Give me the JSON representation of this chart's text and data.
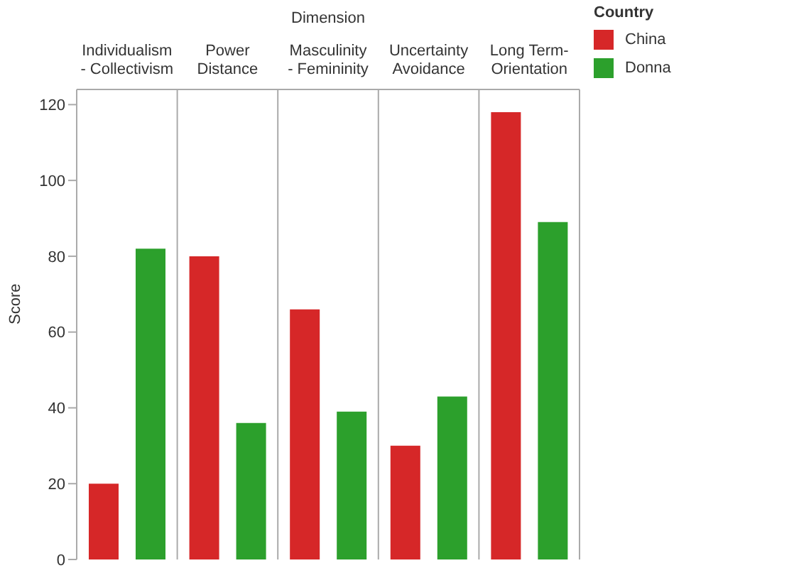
{
  "chart_data": {
    "type": "bar",
    "xlabel": "Dimension",
    "ylabel": "Score",
    "legend_title": "Country",
    "legend": "top right",
    "categories": [
      "Individualism - Collectivism",
      "Power Distance",
      "Masculinity - Femininity",
      "Uncertainty Avoidance",
      "Long Term-Orientation"
    ],
    "series": [
      {
        "name": "China",
        "color": "#d62728",
        "values": [
          20,
          80,
          66,
          30,
          118
        ]
      },
      {
        "name": "Donna",
        "color": "#2ca02c",
        "values": [
          82,
          36,
          39,
          43,
          89
        ]
      }
    ],
    "ylim": [
      0,
      124
    ],
    "yticks": [
      0,
      20,
      40,
      60,
      80,
      100,
      120
    ]
  }
}
